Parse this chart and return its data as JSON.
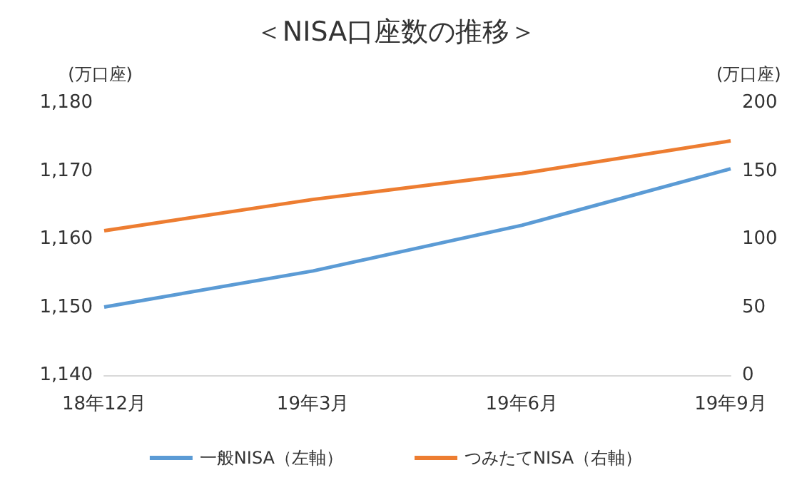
{
  "chart_data": {
    "type": "line",
    "title": "＜NISA口座数の推移＞",
    "ylabel": "(万口座)",
    "y2label": "(万口座)",
    "categories": [
      "18年12月",
      "19年3月",
      "19年6月",
      "19年9月"
    ],
    "series": [
      {
        "name": "一般NISA（左軸）",
        "color": "#5b9bd5",
        "values": [
          1150,
          1155.3,
          1162,
          1170.3
        ]
      },
      {
        "name": "つみたてNISA（右軸）",
        "color": "#ed7d31",
        "axis": "y2",
        "values": [
          106,
          129,
          148,
          172
        ]
      }
    ],
    "ylim": [
      1140,
      1180
    ],
    "yticks": [
      {
        "value": 1140,
        "label": "1,140"
      },
      {
        "value": 1150,
        "label": "1,150"
      },
      {
        "value": 1160,
        "label": "1,160"
      },
      {
        "value": 1170,
        "label": "1,170"
      },
      {
        "value": 1180,
        "label": "1,180"
      }
    ],
    "y2lim": [
      0,
      200
    ],
    "y2ticks": [
      0,
      50,
      100,
      150,
      200
    ],
    "grid": false,
    "legend": "bottom",
    "marker": "none",
    "line_style": "solid"
  }
}
